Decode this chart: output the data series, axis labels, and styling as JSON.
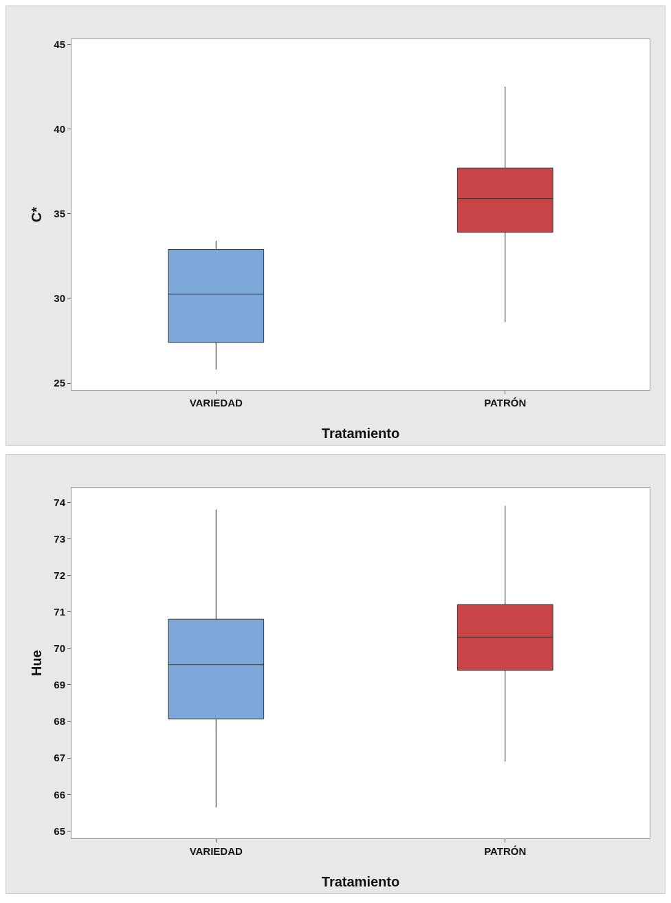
{
  "chart_data": [
    {
      "type": "box",
      "xlabel": "Tratamiento",
      "ylabel": "C*",
      "categories": [
        "VARIEDAD",
        "PATRÓN"
      ],
      "colors": [
        "#7da7d9",
        "#c94447"
      ],
      "boxes": [
        {
          "low": 25.8,
          "q1": 27.4,
          "median": 30.25,
          "q3": 32.9,
          "high": 33.4
        },
        {
          "low": 28.6,
          "q1": 33.9,
          "median": 35.9,
          "q3": 37.7,
          "high": 42.5
        }
      ],
      "ylim": [
        24.6,
        45.3
      ],
      "yticks": [
        25,
        30,
        35,
        40,
        45
      ]
    },
    {
      "type": "box",
      "xlabel": "Tratamiento",
      "ylabel": "Hue",
      "categories": [
        "VARIEDAD",
        "PATRÓN"
      ],
      "colors": [
        "#7da7d9",
        "#c94447"
      ],
      "boxes": [
        {
          "low": 65.65,
          "q1": 68.07,
          "median": 69.55,
          "q3": 70.8,
          "high": 73.8
        },
        {
          "low": 66.9,
          "q1": 69.4,
          "median": 70.3,
          "q3": 71.2,
          "high": 73.9
        }
      ],
      "ylim": [
        64.8,
        74.4
      ],
      "yticks": [
        65,
        66,
        67,
        68,
        69,
        70,
        71,
        72,
        73,
        74
      ]
    }
  ]
}
